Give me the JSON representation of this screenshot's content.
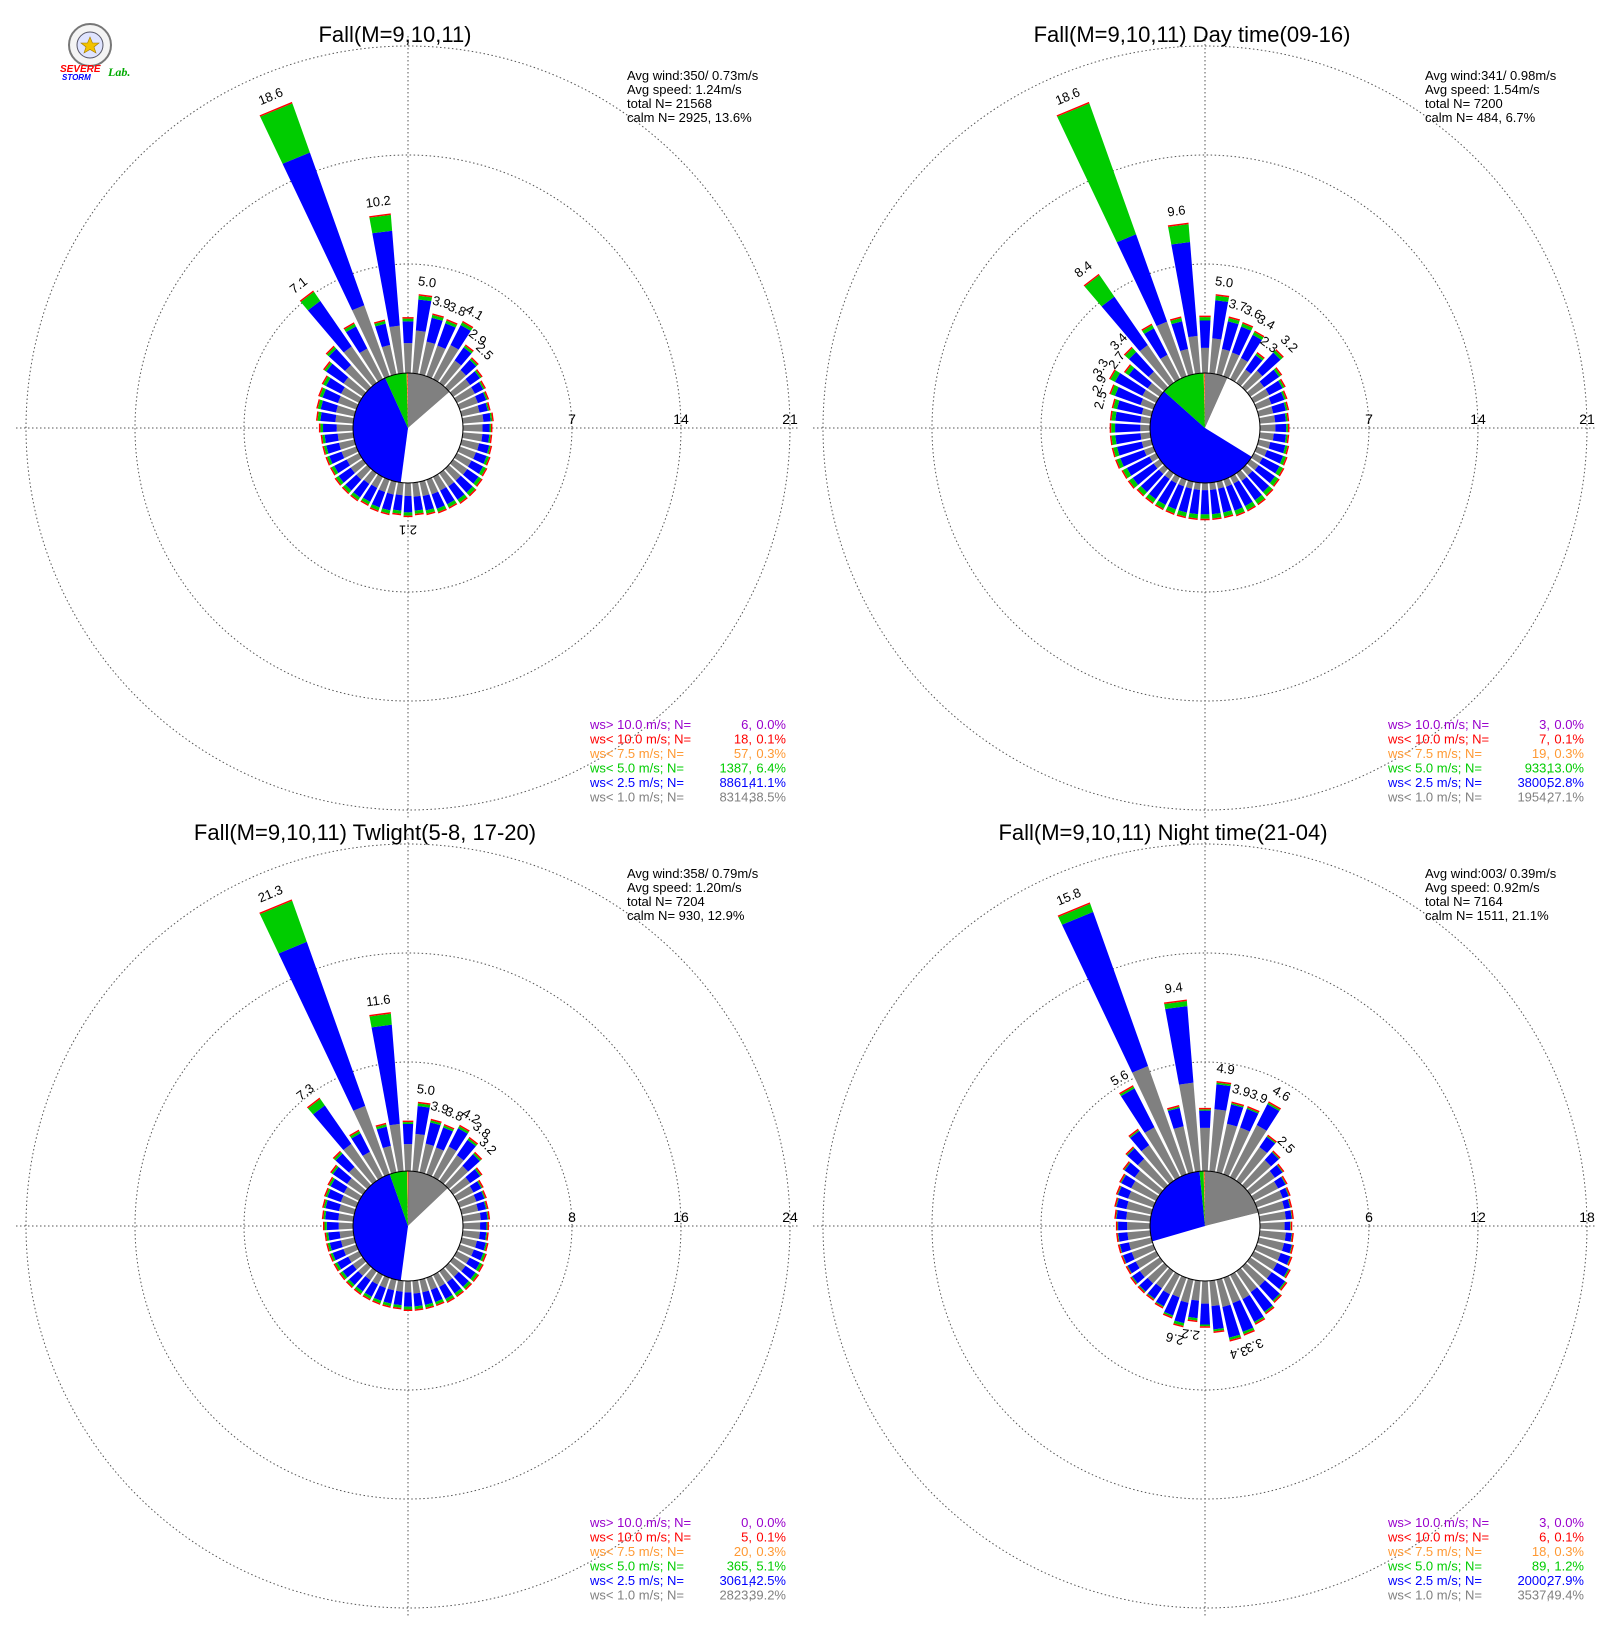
{
  "logo": {
    "text1": "SEVERE",
    "text2": "STORM",
    "text3": "Lab."
  },
  "colors": {
    "calm_gray": "#808080",
    "lt1": "#808080",
    "lt2_5": "#0000ff",
    "lt5": "#00cc00",
    "lt7_5": "#ff9933",
    "lt10": "#ff0000",
    "gt10": "#9900cc"
  },
  "legend_labels": [
    "ws> 10.0 m/s; N=",
    "ws< 10.0 m/s; N=",
    "ws<  7.5 m/s; N=",
    "ws<  5.0 m/s; N=",
    "ws<  2.5 m/s; N=",
    "ws<  1.0 m/s; N="
  ],
  "chart_data": [
    {
      "type": "windrose",
      "title": "Fall(M=9,10,11)",
      "stats": [
        "Avg wind:350/ 0.73m/s",
        "Avg speed: 1.24m/s",
        "total N=       21568",
        "calm N=   2925,  13.6%"
      ],
      "ring_ticks": [
        "7",
        "14",
        "21"
      ],
      "rmax": 21,
      "petal_labels": [
        {
          "dir": 352.5,
          "text": "10.2"
        },
        {
          "dir": 337.5,
          "text": "18.6"
        },
        {
          "dir": 322.5,
          "text": "7.1"
        },
        {
          "dir": 7.5,
          "text": "5.0"
        },
        {
          "dir": 15,
          "text": "3.9"
        },
        {
          "dir": 22.5,
          "text": "3.8"
        },
        {
          "dir": 30,
          "text": "4.1"
        },
        {
          "dir": 37.5,
          "text": "2.9"
        },
        {
          "dir": 45,
          "text": "2.5"
        },
        {
          "dir": 180,
          "text": "2.1"
        }
      ],
      "directions_deg": [
        0,
        7.5,
        15,
        22.5,
        30,
        37.5,
        45,
        52.5,
        60,
        67.5,
        75,
        82.5,
        90,
        97.5,
        105,
        112.5,
        120,
        127.5,
        135,
        142.5,
        150,
        157.5,
        165,
        172.5,
        180,
        187.5,
        195,
        202.5,
        210,
        217.5,
        225,
        232.5,
        240,
        247.5,
        255,
        262.5,
        270,
        277.5,
        285,
        292.5,
        300,
        307.5,
        315,
        322.5,
        330,
        337.5,
        345,
        352.5
      ],
      "petal_pct": [
        3.5,
        5.0,
        3.9,
        3.8,
        4.1,
        2.9,
        2.5,
        2.2,
        2.0,
        1.9,
        1.8,
        1.9,
        1.8,
        1.8,
        1.9,
        2.0,
        2.1,
        2.2,
        2.3,
        2.3,
        2.2,
        2.2,
        2.1,
        2.0,
        2.1,
        2.0,
        2.1,
        2.1,
        2.0,
        2.1,
        2.1,
        2.1,
        2.0,
        2.0,
        2.0,
        2.0,
        2.1,
        2.3,
        2.4,
        2.5,
        2.6,
        3.0,
        3.5,
        7.1,
        4.0,
        18.6,
        3.5,
        10.2
      ],
      "petal_lt1_frac": [
        0.55,
        0.55,
        0.55,
        0.55,
        0.6,
        0.6,
        0.6,
        0.6,
        0.65,
        0.65,
        0.65,
        0.7,
        0.7,
        0.7,
        0.6,
        0.55,
        0.5,
        0.5,
        0.45,
        0.45,
        0.45,
        0.45,
        0.45,
        0.45,
        0.4,
        0.4,
        0.4,
        0.4,
        0.4,
        0.4,
        0.45,
        0.45,
        0.45,
        0.5,
        0.5,
        0.5,
        0.5,
        0.5,
        0.5,
        0.5,
        0.5,
        0.5,
        0.55,
        0.4,
        0.55,
        0.26,
        0.55,
        0.3
      ],
      "petal_lt5_frac": [
        0.05,
        0.05,
        0.05,
        0.05,
        0.05,
        0.05,
        0.05,
        0.05,
        0.05,
        0.05,
        0.05,
        0.05,
        0.05,
        0.05,
        0.05,
        0.08,
        0.1,
        0.1,
        0.1,
        0.1,
        0.1,
        0.1,
        0.1,
        0.1,
        0.1,
        0.1,
        0.1,
        0.1,
        0.1,
        0.1,
        0.1,
        0.1,
        0.1,
        0.08,
        0.08,
        0.08,
        0.08,
        0.08,
        0.08,
        0.08,
        0.08,
        0.05,
        0.05,
        0.1,
        0.05,
        0.18,
        0.05,
        0.1
      ],
      "pie": [
        {
          "cls": "calm",
          "pct": 13.6
        },
        {
          "cls": "lt1",
          "pct": 38.5
        },
        {
          "cls": "lt2_5",
          "pct": 41.1
        },
        {
          "cls": "lt5",
          "pct": 6.4
        },
        {
          "cls": "lt7_5",
          "pct": 0.3
        },
        {
          "cls": "lt10",
          "pct": 0.1
        }
      ],
      "legend": [
        {
          "n": "6",
          "pct": "0.0%"
        },
        {
          "n": "18",
          "pct": "0.1%"
        },
        {
          "n": "57",
          "pct": "0.3%"
        },
        {
          "n": "1387",
          "pct": "6.4%"
        },
        {
          "n": "8861",
          "pct": "41.1%"
        },
        {
          "n": "8314",
          "pct": "38.5%"
        }
      ]
    },
    {
      "type": "windrose",
      "title": "Fall(M=9,10,11) Day time(09-16)",
      "stats": [
        "Avg wind:341/ 0.98m/s",
        "Avg speed: 1.54m/s",
        "total N=       7200",
        "calm N=    484,   6.7%"
      ],
      "ring_ticks": [
        "7",
        "14",
        "21"
      ],
      "rmax": 21,
      "petal_labels": [
        {
          "dir": 352.5,
          "text": "9.6"
        },
        {
          "dir": 337.5,
          "text": "18.6"
        },
        {
          "dir": 322.5,
          "text": "8.4"
        },
        {
          "dir": 7.5,
          "text": "5.0"
        },
        {
          "dir": 15,
          "text": "3.7"
        },
        {
          "dir": 22.5,
          "text": "3.6"
        },
        {
          "dir": 30,
          "text": "3.4"
        },
        {
          "dir": 37.5,
          "text": "2.3"
        },
        {
          "dir": 45,
          "text": "3.2"
        },
        {
          "dir": 315,
          "text": "3.4"
        },
        {
          "dir": 307.5,
          "text": "2.7"
        },
        {
          "dir": 300,
          "text": "3.3"
        },
        {
          "dir": 292.5,
          "text": "2.9"
        },
        {
          "dir": 285,
          "text": "2.5"
        }
      ],
      "directions_deg": [
        0,
        7.5,
        15,
        22.5,
        30,
        37.5,
        45,
        52.5,
        60,
        67.5,
        75,
        82.5,
        90,
        97.5,
        105,
        112.5,
        120,
        127.5,
        135,
        142.5,
        150,
        157.5,
        165,
        172.5,
        180,
        187.5,
        195,
        202.5,
        210,
        217.5,
        225,
        232.5,
        240,
        247.5,
        255,
        262.5,
        270,
        277.5,
        285,
        292.5,
        300,
        307.5,
        315,
        322.5,
        330,
        337.5,
        345,
        352.5
      ],
      "petal_pct": [
        3.6,
        5.0,
        3.7,
        3.6,
        3.4,
        2.3,
        3.2,
        2.4,
        2.2,
        2.0,
        1.9,
        1.8,
        1.8,
        1.8,
        1.9,
        2.0,
        2.1,
        2.2,
        2.3,
        2.4,
        2.4,
        2.4,
        2.3,
        2.3,
        2.3,
        2.3,
        2.3,
        2.3,
        2.3,
        2.3,
        2.3,
        2.4,
        2.4,
        2.5,
        2.5,
        2.5,
        2.5,
        2.5,
        2.5,
        2.9,
        3.3,
        2.7,
        3.4,
        8.4,
        3.9,
        18.6,
        3.7,
        9.6
      ],
      "petal_lt1_frac": [
        0.45,
        0.45,
        0.45,
        0.45,
        0.45,
        0.45,
        0.45,
        0.45,
        0.5,
        0.5,
        0.5,
        0.55,
        0.55,
        0.5,
        0.4,
        0.35,
        0.3,
        0.3,
        0.25,
        0.25,
        0.2,
        0.2,
        0.2,
        0.2,
        0.2,
        0.2,
        0.2,
        0.2,
        0.2,
        0.2,
        0.2,
        0.2,
        0.2,
        0.25,
        0.25,
        0.25,
        0.25,
        0.25,
        0.25,
        0.3,
        0.3,
        0.35,
        0.4,
        0.35,
        0.45,
        0.2,
        0.45,
        0.25
      ],
      "petal_lt5_frac": [
        0.06,
        0.06,
        0.06,
        0.06,
        0.06,
        0.06,
        0.06,
        0.06,
        0.06,
        0.06,
        0.06,
        0.06,
        0.06,
        0.06,
        0.08,
        0.1,
        0.12,
        0.12,
        0.12,
        0.12,
        0.12,
        0.12,
        0.12,
        0.12,
        0.12,
        0.12,
        0.12,
        0.12,
        0.12,
        0.12,
        0.12,
        0.12,
        0.12,
        0.1,
        0.1,
        0.1,
        0.1,
        0.1,
        0.1,
        0.1,
        0.1,
        0.1,
        0.1,
        0.2,
        0.06,
        0.48,
        0.06,
        0.12
      ],
      "pie": [
        {
          "cls": "calm",
          "pct": 6.7
        },
        {
          "cls": "lt1",
          "pct": 27.1
        },
        {
          "cls": "lt2_5",
          "pct": 52.8
        },
        {
          "cls": "lt5",
          "pct": 13.0
        },
        {
          "cls": "lt7_5",
          "pct": 0.3
        },
        {
          "cls": "lt10",
          "pct": 0.1
        }
      ],
      "legend": [
        {
          "n": "3",
          "pct": "0.0%"
        },
        {
          "n": "7",
          "pct": "0.1%"
        },
        {
          "n": "19",
          "pct": "0.3%"
        },
        {
          "n": "933",
          "pct": "13.0%"
        },
        {
          "n": "3800",
          "pct": "52.8%"
        },
        {
          "n": "1954",
          "pct": "27.1%"
        }
      ]
    },
    {
      "type": "windrose",
      "title": "Fall(M=9,10,11) Twlight(5-8, 17-20)",
      "stats": [
        "Avg wind:358/ 0.79m/s",
        "Avg speed: 1.20m/s",
        "total N=       7204",
        "calm N=    930,  12.9%"
      ],
      "ring_ticks": [
        "8",
        "16",
        "24"
      ],
      "rmax": 24,
      "petal_labels": [
        {
          "dir": 352.5,
          "text": "11.6"
        },
        {
          "dir": 337.5,
          "text": "21.3"
        },
        {
          "dir": 322.5,
          "text": "7.3"
        },
        {
          "dir": 7.5,
          "text": "5.0"
        },
        {
          "dir": 15,
          "text": "3.9"
        },
        {
          "dir": 22.5,
          "text": "3.8"
        },
        {
          "dir": 30,
          "text": "4.2"
        },
        {
          "dir": 37.5,
          "text": "3.8"
        },
        {
          "dir": 45,
          "text": "3.2"
        }
      ],
      "directions_deg": [
        0,
        7.5,
        15,
        22.5,
        30,
        37.5,
        45,
        52.5,
        60,
        67.5,
        75,
        82.5,
        90,
        97.5,
        105,
        112.5,
        120,
        127.5,
        135,
        142.5,
        150,
        157.5,
        165,
        172.5,
        180,
        187.5,
        195,
        202.5,
        210,
        217.5,
        225,
        232.5,
        240,
        247.5,
        255,
        262.5,
        270,
        277.5,
        285,
        292.5,
        300,
        307.5,
        315,
        322.5,
        330,
        337.5,
        345,
        352.5
      ],
      "petal_pct": [
        3.6,
        5.0,
        3.9,
        3.8,
        4.2,
        3.8,
        3.2,
        2.5,
        2.1,
        2.0,
        1.9,
        1.9,
        1.8,
        1.8,
        1.9,
        2.0,
        2.1,
        2.2,
        2.2,
        2.2,
        2.2,
        2.1,
        2.1,
        2.1,
        2.1,
        2.0,
        2.0,
        2.0,
        2.0,
        2.0,
        2.0,
        2.0,
        2.0,
        2.0,
        2.0,
        2.0,
        2.1,
        2.2,
        2.3,
        2.4,
        2.5,
        2.8,
        3.3,
        7.3,
        3.8,
        21.3,
        3.6,
        11.6
      ],
      "petal_lt1_frac": [
        0.55,
        0.55,
        0.55,
        0.55,
        0.6,
        0.6,
        0.6,
        0.6,
        0.65,
        0.65,
        0.65,
        0.7,
        0.7,
        0.7,
        0.6,
        0.55,
        0.5,
        0.5,
        0.45,
        0.45,
        0.45,
        0.45,
        0.45,
        0.45,
        0.4,
        0.4,
        0.4,
        0.4,
        0.4,
        0.4,
        0.45,
        0.45,
        0.45,
        0.5,
        0.5,
        0.5,
        0.5,
        0.5,
        0.5,
        0.5,
        0.5,
        0.5,
        0.55,
        0.45,
        0.55,
        0.25,
        0.55,
        0.3
      ],
      "petal_lt5_frac": [
        0.04,
        0.04,
        0.04,
        0.04,
        0.04,
        0.04,
        0.04,
        0.04,
        0.04,
        0.04,
        0.04,
        0.04,
        0.04,
        0.04,
        0.05,
        0.08,
        0.1,
        0.1,
        0.1,
        0.1,
        0.1,
        0.1,
        0.1,
        0.1,
        0.1,
        0.1,
        0.1,
        0.1,
        0.1,
        0.1,
        0.1,
        0.1,
        0.1,
        0.08,
        0.08,
        0.08,
        0.08,
        0.06,
        0.06,
        0.06,
        0.06,
        0.05,
        0.05,
        0.08,
        0.05,
        0.15,
        0.05,
        0.07
      ],
      "pie": [
        {
          "cls": "calm",
          "pct": 12.9
        },
        {
          "cls": "lt1",
          "pct": 39.2
        },
        {
          "cls": "lt2_5",
          "pct": 42.5
        },
        {
          "cls": "lt5",
          "pct": 5.1
        },
        {
          "cls": "lt7_5",
          "pct": 0.3
        },
        {
          "cls": "lt10",
          "pct": 0.1
        }
      ],
      "legend": [
        {
          "n": "0",
          "pct": "0.0%"
        },
        {
          "n": "5",
          "pct": "0.1%"
        },
        {
          "n": "20",
          "pct": "0.3%"
        },
        {
          "n": "365",
          "pct": "5.1%"
        },
        {
          "n": "3061",
          "pct": "42.5%"
        },
        {
          "n": "2823",
          "pct": "39.2%"
        }
      ]
    },
    {
      "type": "windrose",
      "title": "Fall(M=9,10,11) Night time(21-04)",
      "stats": [
        "Avg wind:003/ 0.39m/s",
        "Avg speed: 0.92m/s",
        "total N=       7164",
        "calm N=   1511,  21.1%"
      ],
      "ring_ticks": [
        "6",
        "12",
        "18"
      ],
      "rmax": 18,
      "petal_labels": [
        {
          "dir": 352.5,
          "text": "9.4"
        },
        {
          "dir": 337.5,
          "text": "15.8"
        },
        {
          "dir": 330,
          "text": "5.6"
        },
        {
          "dir": 7.5,
          "text": "4.9"
        },
        {
          "dir": 15,
          "text": "3.9"
        },
        {
          "dir": 22.5,
          "text": "3.9"
        },
        {
          "dir": 30,
          "text": "4.6"
        },
        {
          "dir": 45,
          "text": "2.5"
        },
        {
          "dir": 157.5,
          "text": "3.3"
        },
        {
          "dir": 165,
          "text": "3.4"
        },
        {
          "dir": 187.5,
          "text": "2.2"
        },
        {
          "dir": 195,
          "text": "2.6"
        }
      ],
      "directions_deg": [
        0,
        7.5,
        15,
        22.5,
        30,
        37.5,
        45,
        52.5,
        60,
        67.5,
        75,
        82.5,
        90,
        97.5,
        105,
        112.5,
        120,
        127.5,
        135,
        142.5,
        150,
        157.5,
        165,
        172.5,
        180,
        187.5,
        195,
        202.5,
        210,
        217.5,
        225,
        232.5,
        240,
        247.5,
        255,
        262.5,
        270,
        277.5,
        285,
        292.5,
        300,
        307.5,
        315,
        322.5,
        330,
        337.5,
        345,
        352.5
      ],
      "petal_pct": [
        3.4,
        4.9,
        3.9,
        3.9,
        4.6,
        3.0,
        2.5,
        2.2,
        2.0,
        1.9,
        1.8,
        1.8,
        1.7,
        1.8,
        1.9,
        2.0,
        2.2,
        2.4,
        2.6,
        2.8,
        3.0,
        3.3,
        3.4,
        2.8,
        2.5,
        2.2,
        2.6,
        2.3,
        2.0,
        1.9,
        1.9,
        1.9,
        1.8,
        1.8,
        1.8,
        1.8,
        1.8,
        1.9,
        2.0,
        2.1,
        2.2,
        2.4,
        2.8,
        3.4,
        5.6,
        15.8,
        3.7,
        9.4
      ],
      "petal_lt1_frac": [
        0.7,
        0.7,
        0.7,
        0.7,
        0.7,
        0.75,
        0.75,
        0.75,
        0.75,
        0.8,
        0.8,
        0.8,
        0.8,
        0.8,
        0.75,
        0.7,
        0.65,
        0.6,
        0.55,
        0.5,
        0.5,
        0.45,
        0.45,
        0.5,
        0.5,
        0.5,
        0.5,
        0.5,
        0.6,
        0.6,
        0.65,
        0.7,
        0.7,
        0.7,
        0.7,
        0.7,
        0.7,
        0.7,
        0.7,
        0.7,
        0.7,
        0.7,
        0.7,
        0.7,
        0.55,
        0.4,
        0.7,
        0.52
      ],
      "petal_lt5_frac": [
        0.02,
        0.02,
        0.02,
        0.02,
        0.02,
        0.02,
        0.02,
        0.02,
        0.02,
        0.02,
        0.02,
        0.02,
        0.02,
        0.02,
        0.02,
        0.02,
        0.03,
        0.03,
        0.03,
        0.03,
        0.03,
        0.04,
        0.04,
        0.04,
        0.04,
        0.06,
        0.06,
        0.04,
        0.03,
        0.03,
        0.03,
        0.03,
        0.02,
        0.02,
        0.02,
        0.02,
        0.02,
        0.02,
        0.02,
        0.02,
        0.02,
        0.02,
        0.02,
        0.02,
        0.02,
        0.03,
        0.02,
        0.03
      ],
      "pie": [
        {
          "cls": "calm",
          "pct": 21.1
        },
        {
          "cls": "lt1",
          "pct": 49.4
        },
        {
          "cls": "lt2_5",
          "pct": 27.9
        },
        {
          "cls": "lt5",
          "pct": 1.2
        },
        {
          "cls": "lt7_5",
          "pct": 0.3
        },
        {
          "cls": "lt10",
          "pct": 0.1
        }
      ],
      "legend": [
        {
          "n": "3",
          "pct": "0.0%"
        },
        {
          "n": "6",
          "pct": "0.1%"
        },
        {
          "n": "18",
          "pct": "0.3%"
        },
        {
          "n": "89",
          "pct": "1.2%"
        },
        {
          "n": "2000",
          "pct": "27.9%"
        },
        {
          "n": "3537",
          "pct": "49.4%"
        }
      ]
    }
  ]
}
